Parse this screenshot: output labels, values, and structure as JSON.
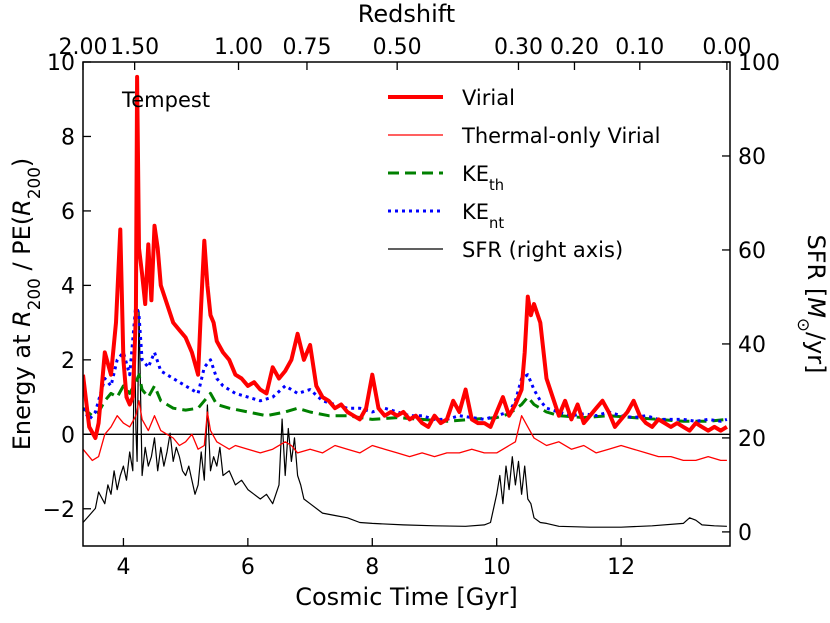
{
  "chart_data": {
    "type": "line",
    "panel_label": "Tempest",
    "xlabel": "Cosmic Time [Gyr]",
    "ylabel_left_parts": [
      "Energy at ",
      "R",
      "200",
      " / PE(",
      "R",
      "200",
      ")"
    ],
    "ylabel_right_parts": [
      "SFR [",
      "M",
      "⊙",
      "/yr]"
    ],
    "top_axis_label": "Redshift",
    "xlim": [
      3.35,
      13.75
    ],
    "ylim_left": [
      -3,
      10
    ],
    "ylim_right": [
      -3.0,
      100
    ],
    "x_ticks": [
      4,
      6,
      8,
      10,
      12
    ],
    "x_tick_labels": [
      "4",
      "6",
      "8",
      "10",
      "12"
    ],
    "y_left_ticks": [
      -2,
      0,
      2,
      4,
      6,
      8,
      10
    ],
    "y_left_tick_labels": [
      "−2",
      "0",
      "2",
      "4",
      "6",
      "8",
      "10"
    ],
    "y_right_ticks": [
      0,
      20,
      40,
      60,
      80,
      100
    ],
    "y_right_tick_labels": [
      "0",
      "20",
      "40",
      "60",
      "80",
      "100"
    ],
    "top_ticks": [
      {
        "time": 3.35,
        "label": "2.00"
      },
      {
        "time": 4.18,
        "label": "1.50"
      },
      {
        "time": 5.85,
        "label": "1.00"
      },
      {
        "time": 6.95,
        "label": "0.75"
      },
      {
        "time": 8.4,
        "label": "0.50"
      },
      {
        "time": 10.35,
        "label": "0.30"
      },
      {
        "time": 11.25,
        "label": "0.20"
      },
      {
        "time": 12.3,
        "label": "0.10"
      },
      {
        "time": 13.7,
        "label": "0.00"
      }
    ],
    "zero_line": 0,
    "series": [
      {
        "name": "Virial",
        "axis": "left",
        "color": "#ff0000",
        "width": 4,
        "dash": "",
        "legend_parts": [
          "Virial"
        ],
        "x": [
          3.35,
          3.45,
          3.55,
          3.6,
          3.7,
          3.8,
          3.88,
          3.95,
          4.0,
          4.05,
          4.1,
          4.15,
          4.2,
          4.22,
          4.25,
          4.3,
          4.35,
          4.4,
          4.45,
          4.5,
          4.55,
          4.6,
          4.7,
          4.8,
          4.9,
          5.0,
          5.1,
          5.2,
          5.25,
          5.3,
          5.35,
          5.4,
          5.45,
          5.5,
          5.6,
          5.7,
          5.8,
          5.9,
          6.0,
          6.1,
          6.2,
          6.3,
          6.4,
          6.5,
          6.6,
          6.7,
          6.8,
          6.9,
          7.0,
          7.1,
          7.2,
          7.3,
          7.4,
          7.5,
          7.6,
          7.7,
          7.8,
          7.9,
          8.0,
          8.1,
          8.2,
          8.3,
          8.4,
          8.5,
          8.6,
          8.7,
          8.8,
          8.9,
          9.0,
          9.1,
          9.2,
          9.3,
          9.4,
          9.5,
          9.6,
          9.7,
          9.8,
          9.9,
          10.0,
          10.1,
          10.2,
          10.3,
          10.4,
          10.45,
          10.5,
          10.55,
          10.6,
          10.7,
          10.8,
          10.9,
          11.0,
          11.1,
          11.2,
          11.3,
          11.4,
          11.5,
          11.6,
          11.7,
          11.8,
          11.9,
          12.0,
          12.1,
          12.2,
          12.3,
          12.4,
          12.5,
          12.6,
          12.7,
          12.8,
          12.9,
          13.0,
          13.1,
          13.2,
          13.3,
          13.4,
          13.5,
          13.6,
          13.7
        ],
        "y": [
          1.6,
          0.2,
          -0.1,
          0.3,
          2.2,
          1.6,
          3.0,
          5.5,
          2.0,
          1.0,
          0.8,
          1.0,
          3.2,
          9.6,
          5.0,
          4.3,
          3.5,
          5.1,
          3.6,
          5.6,
          5.0,
          4.0,
          3.5,
          3.0,
          2.8,
          2.6,
          2.2,
          1.6,
          3.5,
          5.2,
          4.0,
          3.2,
          3.0,
          2.5,
          2.2,
          2.0,
          1.6,
          1.5,
          1.3,
          1.4,
          1.2,
          1.1,
          1.8,
          1.5,
          1.7,
          2.0,
          2.7,
          2.0,
          2.4,
          1.3,
          1.0,
          0.9,
          0.7,
          0.8,
          0.6,
          0.5,
          0.4,
          0.7,
          1.6,
          0.7,
          0.5,
          0.6,
          0.5,
          0.6,
          0.4,
          0.5,
          0.3,
          0.2,
          0.5,
          0.3,
          0.4,
          0.9,
          0.6,
          1.2,
          0.4,
          0.3,
          0.3,
          0.2,
          0.6,
          1.0,
          0.5,
          0.8,
          1.2,
          2.2,
          3.7,
          3.2,
          3.5,
          3.0,
          1.5,
          1.0,
          0.5,
          0.9,
          0.4,
          0.8,
          0.3,
          0.5,
          0.7,
          0.9,
          0.6,
          0.2,
          0.4,
          0.6,
          0.9,
          0.5,
          0.3,
          0.2,
          0.4,
          0.3,
          0.2,
          0.3,
          0.2,
          0.1,
          0.3,
          0.2,
          0.1,
          0.2,
          0.1,
          0.2
        ]
      },
      {
        "name": "Thermal-only Virial",
        "axis": "left",
        "color": "#ff0000",
        "width": 1.3,
        "dash": "",
        "legend_parts": [
          "Thermal-only Virial"
        ],
        "x": [
          3.35,
          3.5,
          3.6,
          3.7,
          3.8,
          3.9,
          4.0,
          4.1,
          4.2,
          4.25,
          4.3,
          4.4,
          4.5,
          4.6,
          4.7,
          4.8,
          4.9,
          5.0,
          5.1,
          5.2,
          5.3,
          5.35,
          5.4,
          5.5,
          5.6,
          5.7,
          5.8,
          6.0,
          6.2,
          6.4,
          6.6,
          6.7,
          6.8,
          7.0,
          7.2,
          7.4,
          7.6,
          7.8,
          8.0,
          8.2,
          8.4,
          8.6,
          8.8,
          9.0,
          9.2,
          9.4,
          9.6,
          9.8,
          10.0,
          10.2,
          10.3,
          10.4,
          10.5,
          10.6,
          10.8,
          11.0,
          11.2,
          11.4,
          11.6,
          11.8,
          12.0,
          12.2,
          12.4,
          12.6,
          12.8,
          13.0,
          13.2,
          13.4,
          13.6,
          13.7
        ],
        "y": [
          -0.4,
          -0.7,
          -0.6,
          0.0,
          0.2,
          0.5,
          0.3,
          0.2,
          0.5,
          0.9,
          0.4,
          0.1,
          0.5,
          0.1,
          0.0,
          -0.1,
          -0.3,
          -0.2,
          0.0,
          -0.4,
          -0.3,
          0.6,
          0.1,
          -0.2,
          -0.3,
          -0.4,
          -0.3,
          -0.4,
          -0.5,
          -0.4,
          -0.2,
          -0.3,
          -0.5,
          -0.4,
          -0.5,
          -0.3,
          -0.4,
          -0.5,
          -0.3,
          -0.4,
          -0.5,
          -0.6,
          -0.5,
          -0.6,
          -0.5,
          -0.5,
          -0.4,
          -0.5,
          -0.5,
          -0.3,
          -0.2,
          0.5,
          0.2,
          -0.1,
          -0.3,
          -0.2,
          -0.4,
          -0.3,
          -0.5,
          -0.4,
          -0.3,
          -0.4,
          -0.5,
          -0.6,
          -0.6,
          -0.7,
          -0.7,
          -0.6,
          -0.7,
          -0.7
        ]
      },
      {
        "name": "KE_th",
        "axis": "left",
        "color": "#008000",
        "width": 3,
        "dash": "11 6",
        "legend_parts": [
          "KE",
          "th"
        ],
        "x": [
          3.35,
          3.5,
          3.6,
          3.7,
          3.8,
          3.9,
          4.0,
          4.1,
          4.2,
          4.25,
          4.3,
          4.4,
          4.5,
          4.6,
          4.7,
          4.8,
          5.0,
          5.2,
          5.3,
          5.4,
          5.5,
          5.7,
          6.0,
          6.3,
          6.6,
          6.8,
          7.0,
          7.3,
          7.6,
          8.0,
          8.4,
          8.8,
          9.2,
          9.6,
          10.0,
          10.2,
          10.4,
          10.5,
          10.6,
          10.8,
          11.0,
          11.4,
          11.8,
          12.2,
          12.6,
          13.0,
          13.4,
          13.7
        ],
        "y": [
          0.7,
          0.5,
          0.6,
          0.9,
          1.1,
          1.0,
          1.3,
          1.1,
          1.4,
          1.6,
          1.2,
          1.0,
          1.3,
          0.9,
          0.8,
          0.7,
          0.65,
          0.7,
          0.9,
          1.1,
          0.8,
          0.7,
          0.6,
          0.5,
          0.6,
          0.7,
          0.6,
          0.5,
          0.5,
          0.4,
          0.45,
          0.4,
          0.35,
          0.4,
          0.45,
          0.55,
          0.8,
          1.0,
          0.8,
          0.6,
          0.5,
          0.45,
          0.5,
          0.45,
          0.4,
          0.35,
          0.35,
          0.4
        ]
      },
      {
        "name": "KE_nt",
        "axis": "left",
        "color": "#0000ff",
        "width": 3,
        "dash": "3 4",
        "legend_parts": [
          "KE",
          "nt"
        ],
        "x": [
          3.35,
          3.45,
          3.55,
          3.7,
          3.8,
          3.9,
          4.0,
          4.1,
          4.2,
          4.25,
          4.3,
          4.4,
          4.5,
          4.6,
          4.7,
          4.8,
          4.9,
          5.0,
          5.1,
          5.2,
          5.3,
          5.4,
          5.5,
          5.6,
          5.8,
          6.0,
          6.2,
          6.4,
          6.6,
          6.8,
          7.0,
          7.2,
          7.4,
          7.6,
          7.8,
          8.0,
          8.2,
          8.4,
          8.6,
          8.8,
          9.0,
          9.2,
          9.4,
          9.6,
          9.8,
          10.0,
          10.2,
          10.3,
          10.4,
          10.5,
          10.6,
          10.7,
          10.8,
          11.0,
          11.2,
          11.4,
          11.6,
          11.8,
          12.0,
          12.2,
          12.4,
          12.6,
          12.8,
          13.0,
          13.2,
          13.4,
          13.6,
          13.7
        ],
        "y": [
          0.7,
          0.4,
          0.6,
          1.5,
          1.3,
          2.0,
          2.2,
          1.6,
          3.5,
          3.2,
          2.0,
          1.8,
          2.2,
          1.7,
          1.6,
          1.5,
          1.4,
          1.3,
          1.2,
          1.1,
          1.8,
          2.0,
          1.5,
          1.3,
          1.1,
          1.0,
          0.9,
          1.0,
          1.3,
          1.1,
          1.2,
          0.9,
          0.8,
          0.7,
          0.7,
          0.6,
          0.7,
          0.6,
          0.5,
          0.5,
          0.4,
          0.4,
          0.5,
          0.45,
          0.4,
          0.5,
          0.6,
          0.9,
          1.5,
          1.6,
          1.2,
          0.9,
          0.7,
          0.6,
          0.5,
          0.55,
          0.5,
          0.6,
          0.5,
          0.45,
          0.5,
          0.4,
          0.4,
          0.4,
          0.35,
          0.4,
          0.35,
          0.4
        ]
      },
      {
        "name": "SFR (right axis)",
        "axis": "right",
        "color": "#000000",
        "width": 1.2,
        "dash": "",
        "legend_parts": [
          "SFR (right axis)"
        ],
        "x": [
          3.35,
          3.45,
          3.55,
          3.6,
          3.7,
          3.75,
          3.8,
          3.85,
          3.9,
          3.95,
          4.0,
          4.05,
          4.1,
          4.15,
          4.18,
          4.2,
          4.22,
          4.25,
          4.3,
          4.35,
          4.4,
          4.45,
          4.5,
          4.55,
          4.6,
          4.65,
          4.7,
          4.75,
          4.8,
          4.85,
          4.9,
          4.95,
          5.0,
          5.05,
          5.1,
          5.15,
          5.2,
          5.25,
          5.3,
          5.35,
          5.4,
          5.45,
          5.5,
          5.55,
          5.6,
          5.7,
          5.8,
          5.9,
          6.0,
          6.1,
          6.2,
          6.3,
          6.4,
          6.5,
          6.55,
          6.6,
          6.65,
          6.7,
          6.75,
          6.8,
          6.85,
          6.9,
          7.0,
          7.2,
          7.4,
          7.6,
          7.8,
          8.0,
          8.5,
          9.0,
          9.5,
          9.8,
          9.9,
          10.0,
          10.05,
          10.1,
          10.15,
          10.2,
          10.25,
          10.3,
          10.35,
          10.4,
          10.45,
          10.5,
          10.55,
          10.6,
          10.7,
          10.8,
          11.0,
          11.5,
          12.0,
          12.5,
          13.0,
          13.1,
          13.2,
          13.3,
          13.5,
          13.7
        ],
        "y": [
          2.0,
          3.5,
          5.0,
          8.5,
          6.0,
          10.0,
          8.0,
          13.0,
          9.0,
          12.0,
          14.0,
          11.0,
          17.0,
          13.0,
          43.0,
          22.0,
          15.0,
          47.0,
          12.0,
          18.0,
          14.0,
          16.0,
          20.0,
          13.0,
          18.0,
          14.0,
          17.0,
          21.0,
          15.0,
          18.0,
          16.0,
          13.0,
          12.0,
          14.0,
          11.0,
          8.0,
          10.0,
          17.0,
          11.0,
          27.0,
          13.0,
          16.0,
          14.0,
          18.0,
          12.0,
          13.0,
          10.0,
          11.0,
          9.0,
          8.0,
          7.0,
          8.0,
          6.0,
          10.0,
          24.0,
          12.0,
          22.0,
          15.0,
          20.0,
          12.0,
          10.0,
          7.0,
          6.0,
          4.0,
          3.5,
          3.0,
          2.0,
          1.8,
          1.5,
          1.3,
          1.2,
          1.5,
          2.0,
          8.0,
          12.0,
          6.0,
          14.0,
          9.0,
          16.0,
          10.0,
          15.0,
          8.0,
          14.0,
          7.0,
          6.0,
          3.0,
          2.0,
          1.8,
          1.2,
          1.0,
          1.0,
          1.3,
          1.8,
          3.0,
          2.5,
          1.5,
          1.3,
          1.2
        ]
      }
    ]
  }
}
